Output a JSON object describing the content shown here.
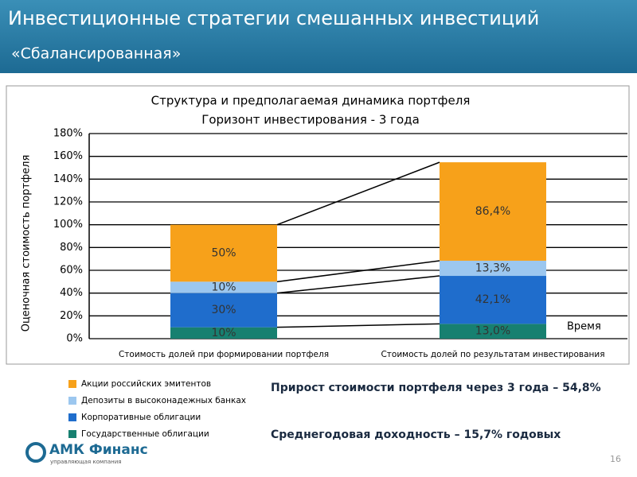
{
  "header": {
    "title": "Инвестиционные стратегии смешанных инвестиций",
    "subtitle": "«Сбалансированная»"
  },
  "chart_data": {
    "type": "bar",
    "stacked": true,
    "title": "Структура и предполагаемая динамика портфеля",
    "subtitle": "Горизонт инвестирования - 3 года",
    "y_label": "Оценочная стоимость портфеля",
    "annotation": "Время",
    "categories": [
      "Стоимость долей при формировании портфеля",
      "Стоимость долей по результатам инвестирования"
    ],
    "series": [
      {
        "name": "Государственные облигации",
        "color": "#178070",
        "values": [
          10,
          13.0
        ],
        "value_labels": [
          "10%",
          "13,0%"
        ]
      },
      {
        "name": "Корпоративные облигации",
        "color": "#1f6dcc",
        "values": [
          30,
          42.1
        ],
        "value_labels": [
          "30%",
          "42,1%"
        ]
      },
      {
        "name": "Депозиты в высоконадежных банках",
        "color": "#9cc7ef",
        "values": [
          10,
          13.3
        ],
        "value_labels": [
          "10%",
          "13,3%"
        ]
      },
      {
        "name": "Акции российских эмитентов",
        "color": "#f7a11a",
        "values": [
          50,
          86.4
        ],
        "value_labels": [
          "50%",
          "86,4%"
        ]
      }
    ],
    "ylim": [
      0,
      180
    ],
    "yticks": [
      {
        "value": 0,
        "label": "0%"
      },
      {
        "value": 20,
        "label": "20%"
      },
      {
        "value": 40,
        "label": "40%"
      },
      {
        "value": 60,
        "label": "60%"
      },
      {
        "value": 80,
        "label": "80%"
      },
      {
        "value": 100,
        "label": "100%"
      },
      {
        "value": 120,
        "label": "120%"
      },
      {
        "value": 140,
        "label": "140%"
      },
      {
        "value": 160,
        "label": "160%"
      },
      {
        "value": 180,
        "label": "180%"
      }
    ],
    "grid": true
  },
  "notes": {
    "growth": "Прирост стоимости портфеля через 3 года – 54,8%",
    "yield": "Среднегодовая доходность – 15,7% годовых"
  },
  "footer": {
    "logo": "АМК Финанс",
    "logo_tagline": "управляющая компания",
    "page": "16"
  }
}
